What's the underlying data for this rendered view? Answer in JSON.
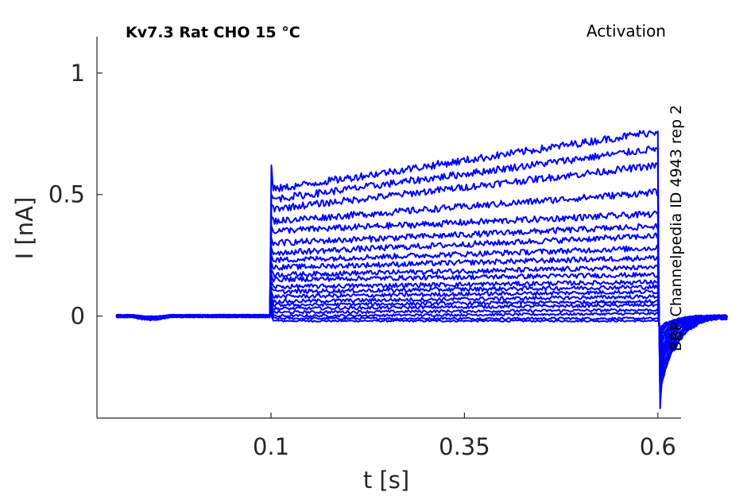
{
  "chart_data": {
    "type": "line",
    "title_left": "Kv7.3  Rat  CHO  15 °C",
    "title_right": "Activation",
    "side_note": "BBP Channelpedia ID 4943 rep 2",
    "xlabel": "t [s]",
    "ylabel": "I [nA]",
    "xlim": [
      -0.125,
      0.63
    ],
    "ylim": [
      -0.42,
      1.15
    ],
    "xticks": [
      0.1,
      0.35,
      0.6
    ],
    "xtick_labels": [
      "0.1",
      "0.35",
      "0.6"
    ],
    "yticks": [
      0,
      0.5,
      1
    ],
    "ytick_labels": [
      "0",
      "0.5",
      "1"
    ],
    "grid": false,
    "line_color": "#0000ff",
    "pulse_start": 0.1,
    "pulse_end": 0.6,
    "series": [
      {
        "start": -0.02,
        "end": -0.02,
        "tail": -0.01
      },
      {
        "start": -0.01,
        "end": -0.01,
        "tail": -0.01
      },
      {
        "start": 0.0,
        "end": 0.01,
        "tail": -0.005
      },
      {
        "start": 0.015,
        "end": 0.025,
        "tail": -0.005
      },
      {
        "start": 0.03,
        "end": 0.045,
        "tail": 0.0
      },
      {
        "start": 0.045,
        "end": 0.06,
        "tail": 0.0
      },
      {
        "start": 0.06,
        "end": 0.08,
        "tail": 0.0
      },
      {
        "start": 0.08,
        "end": 0.1,
        "tail": 0.0
      },
      {
        "start": 0.1,
        "end": 0.12,
        "tail": 0.0
      },
      {
        "start": 0.12,
        "end": 0.14,
        "tail": 0.0
      },
      {
        "start": 0.15,
        "end": 0.17,
        "tail": 0.0
      },
      {
        "start": 0.17,
        "end": 0.2,
        "tail": 0.0
      },
      {
        "start": 0.2,
        "end": 0.24,
        "tail": 0.0
      },
      {
        "start": 0.23,
        "end": 0.28,
        "tail": 0.0
      },
      {
        "start": 0.26,
        "end": 0.33,
        "tail": 0.0
      },
      {
        "start": 0.3,
        "end": 0.37,
        "tail": 0.0
      },
      {
        "start": 0.35,
        "end": 0.42,
        "tail": 0.0
      },
      {
        "start": 0.39,
        "end": 0.51,
        "tail": 0.0
      },
      {
        "start": 0.44,
        "end": 0.62,
        "tail": 0.0
      },
      {
        "start": 0.48,
        "end": 0.69,
        "tail": 0.0
      },
      {
        "start": 0.52,
        "end": 0.76,
        "tail": 0.0
      }
    ]
  }
}
